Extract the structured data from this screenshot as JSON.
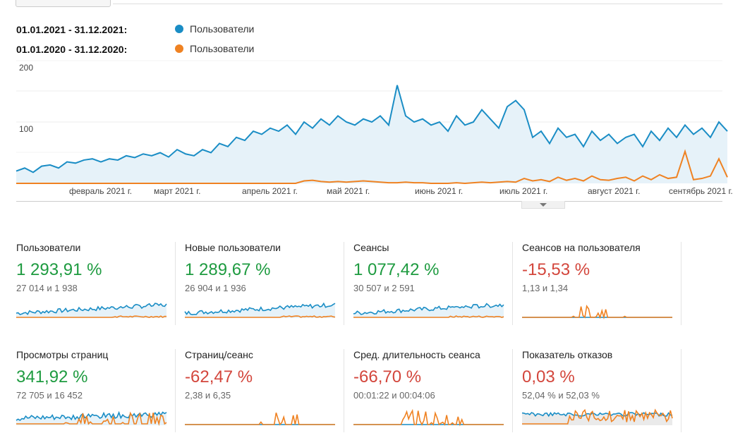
{
  "colors": {
    "current": "#1a8dc5",
    "previous": "#ef8222",
    "positive": "#1e9b40",
    "negative": "#d3463c"
  },
  "legend": [
    {
      "range": "01.01.2021 - 31.12.2021:",
      "metric": "Пользователи"
    },
    {
      "range": "01.01.2020 - 31.12.2020:",
      "metric": "Пользователи"
    }
  ],
  "chart_data": {
    "type": "line",
    "title": "Пользователи",
    "x_start": "2021-01-01",
    "x_step_days": 3,
    "ylim": [
      0,
      200
    ],
    "y_ticks": [
      "200",
      "100"
    ],
    "x_tick_labels": [
      "февраль 2021 г.",
      "март 2021 г.",
      "апрель 2021 г.",
      "май 2021 г.",
      "июнь 2021 г.",
      "июль 2021 г.",
      "август 2021 г.",
      "сентябрь 2021 г."
    ],
    "series": [
      {
        "name": "Пользователи (01.01.2021 - 31.12.2021)",
        "values": [
          20,
          25,
          18,
          28,
          30,
          25,
          35,
          33,
          38,
          40,
          35,
          40,
          38,
          45,
          42,
          48,
          45,
          50,
          43,
          55,
          48,
          45,
          55,
          50,
          65,
          60,
          75,
          70,
          85,
          80,
          90,
          85,
          95,
          80,
          100,
          90,
          105,
          95,
          110,
          100,
          95,
          105,
          100,
          110,
          95,
          160,
          110,
          100,
          105,
          95,
          100,
          85,
          110,
          95,
          100,
          120,
          105,
          90,
          125,
          135,
          120,
          75,
          85,
          65,
          90,
          75,
          80,
          60,
          85,
          70,
          80,
          65,
          75,
          80,
          60,
          85,
          70,
          90,
          75,
          95,
          80,
          90,
          75,
          100,
          85
        ]
      },
      {
        "name": "Пользователи (01.01.2020 - 31.12.2020)",
        "values": [
          0,
          0,
          0,
          0,
          0,
          0,
          0,
          0,
          0,
          0,
          0,
          0,
          0,
          0,
          0,
          0,
          0,
          0,
          0,
          0,
          0,
          0,
          0,
          0,
          0,
          0,
          0,
          0,
          0,
          0,
          0,
          0,
          0,
          0,
          4,
          5,
          3,
          2,
          3,
          2,
          3,
          4,
          3,
          2,
          1,
          1,
          2,
          1,
          1,
          0,
          0,
          0,
          1,
          0,
          1,
          2,
          1,
          2,
          3,
          2,
          8,
          4,
          6,
          3,
          10,
          5,
          8,
          4,
          12,
          6,
          5,
          8,
          10,
          4,
          12,
          6,
          14,
          8,
          10,
          52,
          6,
          8,
          12,
          40,
          10
        ]
      }
    ]
  },
  "metrics": [
    {
      "title": "Пользователи",
      "value": "1 293,91 %",
      "sub": "27 014 и 1 938",
      "trend": "positive"
    },
    {
      "title": "Новые пользователи",
      "value": "1 289,67 %",
      "sub": "26 904 и 1 936",
      "trend": "positive"
    },
    {
      "title": "Сеансы",
      "value": "1 077,42 %",
      "sub": "30 507 и 2 591",
      "trend": "positive"
    },
    {
      "title": "Сеансов на пользователя",
      "value": "-15,53 %",
      "sub": "1,13 и 1,34",
      "trend": "negative"
    },
    {
      "title": "Просмотры страниц",
      "value": "341,92 %",
      "sub": "72 705 и 16 452",
      "trend": "positive"
    },
    {
      "title": "Страниц/сеанс",
      "value": "-62,47 %",
      "sub": "2,38 и 6,35",
      "trend": "negative"
    },
    {
      "title": "Сред. длительность сеанса",
      "value": "-66,70 %",
      "sub": "00:01:22 и 00:04:06",
      "trend": "negative"
    },
    {
      "title": "Показатель отказов",
      "value": "0,03 %",
      "sub": "52,04 % и 52,03 %",
      "trend": "negative"
    }
  ]
}
